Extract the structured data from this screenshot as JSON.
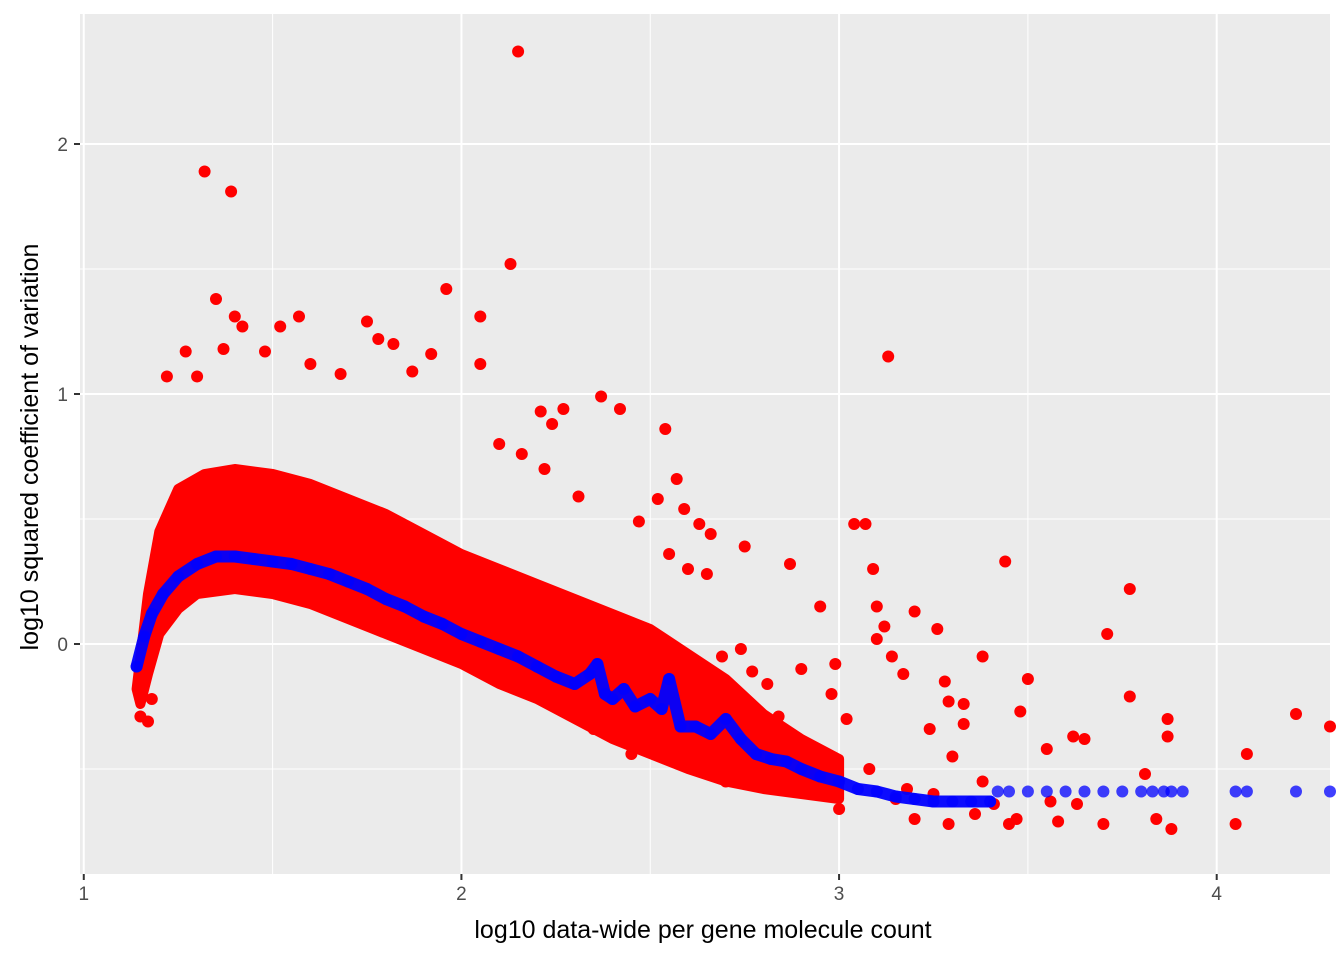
{
  "chart_data": {
    "type": "scatter",
    "title": "",
    "xlabel": "log10 data-wide per gene molecule count",
    "ylabel": "log10 squared coefficient of variation",
    "xlim": [
      0.99,
      4.3
    ],
    "ylim": [
      -0.92,
      2.52
    ],
    "x_ticks": [
      {
        "value": 1,
        "label": "1"
      },
      {
        "value": 2,
        "label": "2"
      },
      {
        "value": 3,
        "label": "3"
      },
      {
        "value": 4,
        "label": "4"
      }
    ],
    "y_ticks": [
      {
        "value": 0,
        "label": "0"
      },
      {
        "value": 1,
        "label": "1"
      },
      {
        "value": 2,
        "label": "2"
      }
    ],
    "grid": true,
    "legend": "none",
    "colors": {
      "panel": "#ebebeb",
      "grid": "#ffffff",
      "observed": "#ff0000",
      "fitted": "#0000ff"
    },
    "series": [
      {
        "role": "observed",
        "points": [
          [
            2.15,
            2.37
          ],
          [
            1.32,
            1.89
          ],
          [
            1.39,
            1.81
          ],
          [
            2.13,
            1.52
          ],
          [
            1.96,
            1.42
          ],
          [
            1.35,
            1.38
          ],
          [
            1.4,
            1.31
          ],
          [
            2.05,
            1.31
          ],
          [
            1.57,
            1.31
          ],
          [
            3.13,
            1.15
          ],
          [
            1.42,
            1.27
          ],
          [
            1.52,
            1.27
          ],
          [
            1.75,
            1.29
          ],
          [
            1.78,
            1.22
          ],
          [
            1.27,
            1.17
          ],
          [
            1.82,
            1.2
          ],
          [
            1.92,
            1.16
          ],
          [
            1.37,
            1.18
          ],
          [
            1.48,
            1.17
          ],
          [
            1.6,
            1.12
          ],
          [
            2.05,
            1.12
          ],
          [
            1.22,
            1.07
          ],
          [
            1.3,
            1.07
          ],
          [
            1.68,
            1.08
          ],
          [
            1.87,
            1.09
          ],
          [
            2.37,
            0.99
          ],
          [
            2.27,
            0.94
          ],
          [
            2.42,
            0.94
          ],
          [
            2.21,
            0.93
          ],
          [
            2.24,
            0.88
          ],
          [
            2.54,
            0.86
          ],
          [
            2.1,
            0.8
          ],
          [
            2.16,
            0.76
          ],
          [
            2.22,
            0.7
          ],
          [
            2.31,
            0.59
          ],
          [
            2.57,
            0.66
          ],
          [
            2.52,
            0.58
          ],
          [
            2.59,
            0.54
          ],
          [
            2.47,
            0.49
          ],
          [
            2.66,
            0.44
          ],
          [
            2.63,
            0.48
          ],
          [
            2.75,
            0.39
          ],
          [
            2.6,
            0.3
          ],
          [
            2.55,
            0.36
          ],
          [
            2.65,
            0.28
          ],
          [
            3.04,
            0.48
          ],
          [
            3.07,
            0.48
          ],
          [
            2.87,
            0.32
          ],
          [
            3.09,
            0.3
          ],
          [
            2.95,
            0.15
          ],
          [
            3.1,
            0.15
          ],
          [
            3.12,
            0.07
          ],
          [
            3.2,
            0.13
          ],
          [
            3.1,
            0.02
          ],
          [
            2.9,
            -0.1
          ],
          [
            2.99,
            -0.08
          ],
          [
            2.98,
            -0.2
          ],
          [
            3.17,
            -0.12
          ],
          [
            3.14,
            -0.05
          ],
          [
            3.02,
            -0.3
          ],
          [
            3.26,
            0.06
          ],
          [
            3.28,
            -0.15
          ],
          [
            3.29,
            -0.23
          ],
          [
            3.33,
            -0.24
          ],
          [
            3.38,
            -0.05
          ],
          [
            3.33,
            -0.32
          ],
          [
            3.3,
            -0.45
          ],
          [
            3.44,
            0.33
          ],
          [
            3.24,
            -0.34
          ],
          [
            3.38,
            -0.55
          ],
          [
            3.25,
            -0.6
          ],
          [
            3.18,
            -0.58
          ],
          [
            3.08,
            -0.5
          ],
          [
            3.15,
            -0.62
          ],
          [
            3.29,
            -0.72
          ],
          [
            3.36,
            -0.68
          ],
          [
            3.47,
            -0.7
          ],
          [
            3.5,
            -0.14
          ],
          [
            3.48,
            -0.27
          ],
          [
            3.55,
            -0.42
          ],
          [
            3.62,
            -0.37
          ],
          [
            3.65,
            -0.38
          ],
          [
            3.71,
            0.04
          ],
          [
            3.77,
            0.22
          ],
          [
            3.77,
            -0.21
          ],
          [
            3.81,
            -0.52
          ],
          [
            3.87,
            -0.3
          ],
          [
            3.87,
            -0.37
          ],
          [
            3.88,
            -0.74
          ],
          [
            3.84,
            -0.7
          ],
          [
            4.05,
            -0.72
          ],
          [
            4.08,
            -0.44
          ],
          [
            4.21,
            -0.28
          ],
          [
            4.3,
            -0.33
          ],
          [
            3.2,
            -0.7
          ],
          [
            3.41,
            -0.64
          ],
          [
            3.45,
            -0.72
          ],
          [
            3.58,
            -0.71
          ],
          [
            3.63,
            -0.64
          ],
          [
            3.7,
            -0.72
          ],
          [
            3.56,
            -0.63
          ],
          [
            3.0,
            -0.66
          ],
          [
            2.93,
            -0.55
          ],
          [
            2.8,
            -0.56
          ],
          [
            2.75,
            -0.48
          ],
          [
            2.7,
            -0.55
          ],
          [
            2.85,
            -0.4
          ],
          [
            2.78,
            -0.37
          ],
          [
            2.84,
            -0.29
          ],
          [
            2.81,
            -0.16
          ],
          [
            2.77,
            -0.11
          ],
          [
            2.72,
            -0.18
          ],
          [
            2.69,
            -0.05
          ],
          [
            2.74,
            -0.02
          ],
          [
            2.62,
            -0.1
          ],
          [
            2.47,
            -0.3
          ],
          [
            2.45,
            -0.44
          ],
          [
            2.35,
            -0.34
          ],
          [
            2.58,
            -0.4
          ],
          [
            2.51,
            -0.21
          ],
          [
            1.15,
            -0.29
          ],
          [
            1.17,
            -0.31
          ],
          [
            1.18,
            -0.22
          ]
        ]
      },
      {
        "role": "fitted",
        "points": [
          [
            1.14,
            -0.09
          ],
          [
            1.16,
            0.03
          ],
          [
            1.18,
            0.12
          ],
          [
            1.21,
            0.2
          ],
          [
            1.25,
            0.27
          ],
          [
            1.3,
            0.32
          ],
          [
            1.35,
            0.35
          ],
          [
            1.4,
            0.35
          ],
          [
            1.45,
            0.34
          ],
          [
            1.5,
            0.33
          ],
          [
            1.55,
            0.32
          ],
          [
            1.6,
            0.3
          ],
          [
            1.65,
            0.28
          ],
          [
            1.7,
            0.25
          ],
          [
            1.75,
            0.22
          ],
          [
            1.8,
            0.18
          ],
          [
            1.85,
            0.15
          ],
          [
            1.9,
            0.11
          ],
          [
            1.95,
            0.08
          ],
          [
            2.0,
            0.04
          ],
          [
            2.05,
            0.01
          ],
          [
            2.1,
            -0.02
          ],
          [
            2.15,
            -0.05
          ],
          [
            2.2,
            -0.09
          ],
          [
            2.25,
            -0.13
          ],
          [
            2.3,
            -0.16
          ],
          [
            2.34,
            -0.12
          ],
          [
            2.36,
            -0.08
          ],
          [
            2.38,
            -0.2
          ],
          [
            2.4,
            -0.22
          ],
          [
            2.43,
            -0.18
          ],
          [
            2.46,
            -0.25
          ],
          [
            2.5,
            -0.22
          ],
          [
            2.53,
            -0.26
          ],
          [
            2.55,
            -0.14
          ],
          [
            2.58,
            -0.33
          ],
          [
            2.62,
            -0.33
          ],
          [
            2.66,
            -0.36
          ],
          [
            2.7,
            -0.3
          ],
          [
            2.74,
            -0.38
          ],
          [
            2.78,
            -0.44
          ],
          [
            2.82,
            -0.46
          ],
          [
            2.86,
            -0.47
          ],
          [
            2.9,
            -0.5
          ],
          [
            2.95,
            -0.53
          ],
          [
            3.0,
            -0.55
          ],
          [
            3.05,
            -0.58
          ],
          [
            3.1,
            -0.59
          ],
          [
            3.15,
            -0.61
          ],
          [
            3.2,
            -0.62
          ],
          [
            3.25,
            -0.63
          ],
          [
            3.3,
            -0.63
          ],
          [
            3.35,
            -0.63
          ],
          [
            3.4,
            -0.63
          ],
          [
            3.42,
            -0.59
          ],
          [
            3.45,
            -0.59
          ],
          [
            3.5,
            -0.59
          ],
          [
            3.55,
            -0.59
          ],
          [
            3.6,
            -0.59
          ],
          [
            3.65,
            -0.59
          ],
          [
            3.7,
            -0.59
          ],
          [
            3.75,
            -0.59
          ],
          [
            3.8,
            -0.59
          ],
          [
            3.83,
            -0.59
          ],
          [
            3.86,
            -0.59
          ],
          [
            3.88,
            -0.59
          ],
          [
            3.91,
            -0.59
          ],
          [
            4.05,
            -0.59
          ],
          [
            4.08,
            -0.59
          ],
          [
            4.21,
            -0.59
          ],
          [
            4.3,
            -0.59
          ]
        ]
      }
    ]
  }
}
